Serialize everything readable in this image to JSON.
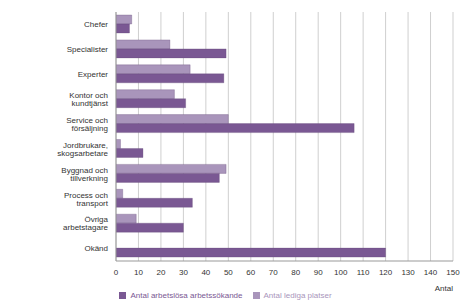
{
  "chart_data": {
    "type": "bar",
    "orientation": "horizontal",
    "categories": [
      "Chefer",
      "Specialister",
      "Experter",
      "Kontor och kundtjänst",
      "Service och försäljning",
      "Jordbrukare, skogsarbetare",
      "Byggnad och tillverkning",
      "Process och transport",
      "Övriga arbetstagare",
      "Okänd"
    ],
    "series": [
      {
        "name": "Antal lediga platser",
        "color": "#a995bb",
        "values": [
          7,
          24,
          33,
          26,
          50,
          2,
          49,
          3,
          9,
          0
        ]
      },
      {
        "name": "Antal arbetslösa arbetssökande",
        "color": "#7a5893",
        "values": [
          6,
          49,
          48,
          31,
          106,
          12,
          46,
          34,
          30,
          120
        ]
      }
    ],
    "x_label": "Antal",
    "xlim": [
      0,
      150
    ],
    "xticks": [
      0,
      10,
      20,
      30,
      40,
      50,
      60,
      70,
      80,
      90,
      100,
      110,
      120,
      130,
      140,
      150
    ],
    "grid": true,
    "legend": "bottom"
  }
}
